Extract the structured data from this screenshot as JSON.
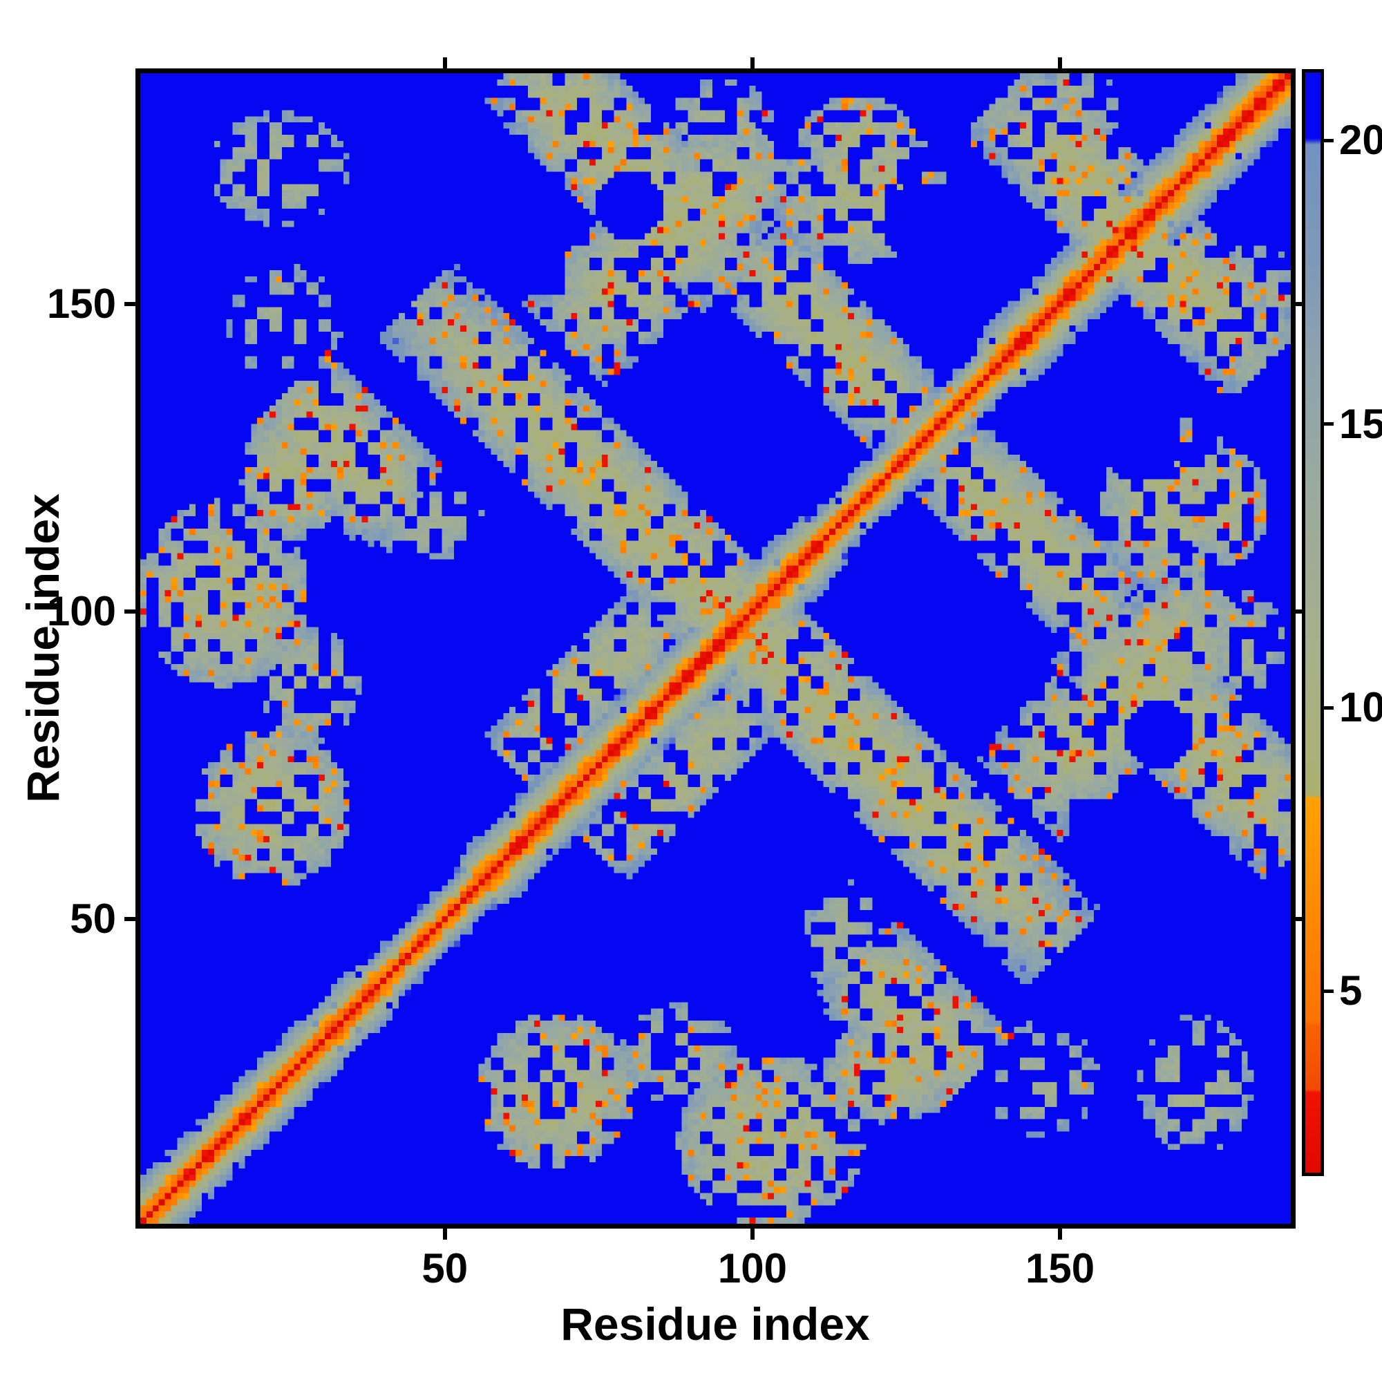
{
  "figure": {
    "kind": "protein residue distance matrix heatmap",
    "background_color": "#ffffff",
    "frame_color": "#000000"
  },
  "chart_data": {
    "type": "heatmap",
    "title": "",
    "xlabel": "Residue index",
    "ylabel": "Residue index",
    "n_residues": 187,
    "x_ticks": [
      50,
      100,
      150
    ],
    "y_ticks": [
      50,
      100,
      150
    ],
    "grid": false,
    "colorbar": {
      "ticks": [
        5,
        10,
        15,
        20
      ],
      "tick_labels": [
        "5",
        "10",
        "15",
        "20"
      ],
      "vmin": 1.8,
      "vmax": 21.2,
      "position": "right"
    },
    "colormap_stops": [
      [
        1.8,
        "#e00800"
      ],
      [
        3.2,
        "#f01300"
      ],
      [
        3.25,
        "#f24b00"
      ],
      [
        4.4,
        "#f96200"
      ],
      [
        4.45,
        "#fd7300"
      ],
      [
        8.4,
        "#ffa101"
      ],
      [
        8.45,
        "#abb06f"
      ],
      [
        11.0,
        "#a7b08a"
      ],
      [
        13.5,
        "#9cab9b"
      ],
      [
        16.0,
        "#8da4ae"
      ],
      [
        18.0,
        "#7d98b8"
      ],
      [
        19.95,
        "#7392c1"
      ],
      [
        20.05,
        "#0506f2"
      ],
      [
        22.0,
        "#0506f2"
      ]
    ],
    "value_over_cutoff_color": "#0506f2",
    "diagonal_band": {
      "base": 0.8,
      "jitter": 1.3,
      "parity_checker": 0.7,
      "hole_prob": 0.035,
      "slope_segments": [
        [
          0,
          40,
          2.6
        ],
        [
          40,
          56,
          3.4
        ],
        [
          56,
          112,
          2.45
        ],
        [
          112,
          140,
          3.2
        ],
        [
          140,
          188,
          2.35
        ]
      ]
    },
    "contact_regions": [
      {
        "kind": "ellipse",
        "i": 23,
        "j": 172,
        "rx": 10,
        "ry": 8,
        "base": 11.5,
        "density": 0.42,
        "speckle": 0.03
      },
      {
        "kind": "ellipse",
        "i": 24,
        "j": 147,
        "rx": 8,
        "ry": 8,
        "base": 12.0,
        "density": 0.3,
        "speckle": 0.02
      },
      {
        "kind": "segment",
        "i": 34,
        "j": 126,
        "span": 20,
        "dir": -1,
        "w": 8,
        "base": 10.0,
        "density": 0.8,
        "speckle": 0.1
      },
      {
        "kind": "ellipse",
        "i": 25,
        "j": 122,
        "rx": 7,
        "ry": 9,
        "base": 10.2,
        "density": 0.75,
        "speckle": 0.09
      },
      {
        "kind": "ellipse",
        "i": 47,
        "j": 115,
        "rx": 8,
        "ry": 6,
        "base": 12.2,
        "density": 0.4,
        "speckle": 0.02
      },
      {
        "kind": "ellipse",
        "i": 14,
        "j": 103,
        "rx": 12,
        "ry": 13,
        "base": 10.0,
        "density": 0.72,
        "speckle": 0.1
      },
      {
        "kind": "ellipse",
        "i": 22,
        "j": 68,
        "rx": 11,
        "ry": 11,
        "base": 10.2,
        "density": 0.68,
        "speckle": 0.08
      },
      {
        "kind": "ellipse",
        "i": 28,
        "j": 88,
        "rx": 7,
        "ry": 8,
        "base": 11.0,
        "density": 0.55,
        "speckle": 0.05
      },
      {
        "kind": "segment",
        "i": 77,
        "j": 119,
        "span": 64,
        "dir": -1,
        "w": 7.5,
        "base": 9.8,
        "density": 0.82,
        "speckle": 0.09
      },
      {
        "kind": "segment",
        "i": 73,
        "j": 88,
        "span": 26,
        "dir": 1,
        "w": 5.5,
        "base": 10.5,
        "density": 0.7,
        "speckle": 0.05
      },
      {
        "kind": "segment",
        "i": 80,
        "j": 172,
        "span": 36,
        "dir": -1,
        "w": 8,
        "base": 10.0,
        "density": 0.78,
        "speckle": 0.09
      },
      {
        "kind": "segment",
        "i": 86,
        "j": 160,
        "span": 34,
        "dir": 1,
        "w": 9,
        "base": 10.2,
        "density": 0.72,
        "speckle": 0.07
      },
      {
        "kind": "segment",
        "i": 113,
        "j": 144,
        "span": 28,
        "dir": -1,
        "w": 7,
        "base": 10.0,
        "density": 0.75,
        "speckle": 0.08
      },
      {
        "kind": "ellipse",
        "i": 117,
        "j": 177,
        "rx": 8,
        "ry": 6,
        "base": 10.5,
        "density": 0.7,
        "speckle": 0.1
      },
      {
        "kind": "ellipse",
        "i": 118,
        "j": 168,
        "rx": 12,
        "ry": 10,
        "base": 10.3,
        "density": 0.6,
        "speckle": 0.07
      },
      {
        "kind": "segment",
        "i": 162,
        "j": 162,
        "span": 44,
        "dir": -1,
        "w": 7.5,
        "base": 9.8,
        "density": 0.8,
        "speckle": 0.1
      },
      {
        "kind": "ellipse",
        "i": 150,
        "j": 182,
        "rx": 9,
        "ry": 6,
        "base": 11.5,
        "density": 0.45,
        "speckle": 0.06
      },
      {
        "kind": "ellipse",
        "i": 95,
        "j": 180,
        "rx": 7,
        "ry": 6,
        "base": 11.8,
        "density": 0.4,
        "speckle": 0.05
      }
    ],
    "holes": [
      [
        80,
        166,
        5.5,
        5.5
      ],
      [
        129,
        163,
        8,
        7
      ]
    ],
    "symmetric": true
  }
}
